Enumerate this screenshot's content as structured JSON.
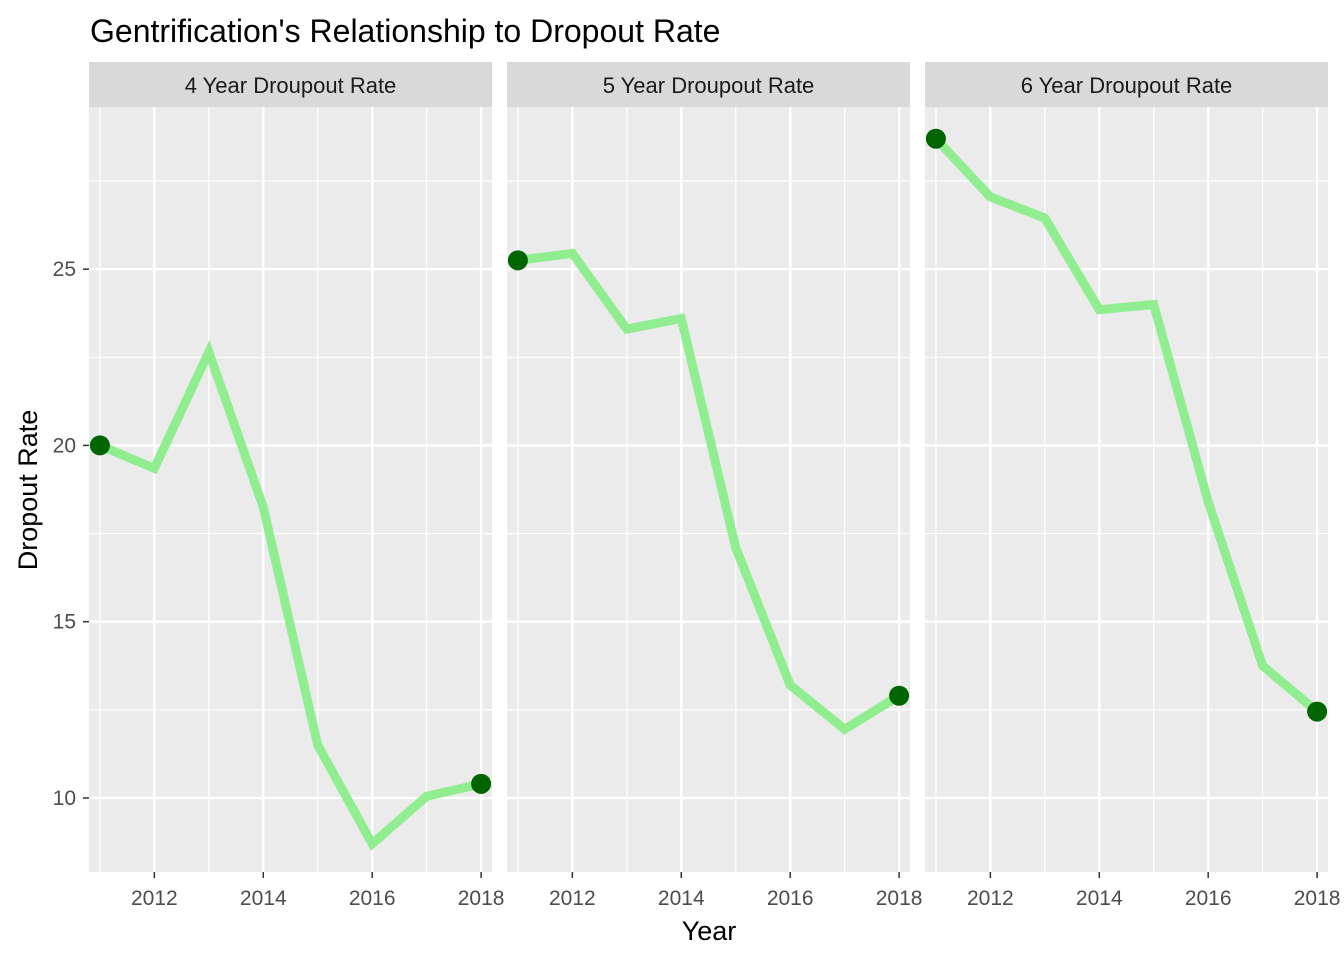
{
  "chart_data": {
    "type": "line",
    "title": "Gentrification's Relationship to Dropout Rate",
    "xlabel": "Year",
    "ylabel": "Dropout Rate",
    "x": [
      2011,
      2012,
      2013,
      2014,
      2015,
      2016,
      2017,
      2018
    ],
    "xlim": [
      2010.8,
      2018.2
    ],
    "ylim": [
      7.9,
      29.6
    ],
    "x_ticks": [
      2012,
      2014,
      2016,
      2018
    ],
    "y_ticks": [
      10,
      15,
      20,
      25
    ],
    "grid": true,
    "line_color": "#90EE90",
    "point_color": "#006400",
    "panel_background": "#EBEBEB",
    "strip_background": "#D9D9D9",
    "panels": [
      {
        "label": "4 Year Droupout Rate",
        "values": [
          20.0,
          19.35,
          22.65,
          18.25,
          11.5,
          8.7,
          10.05,
          10.4
        ]
      },
      {
        "label": "5 Year Droupout Rate",
        "values": [
          25.25,
          25.45,
          23.3,
          23.6,
          17.1,
          13.2,
          11.95,
          12.9
        ]
      },
      {
        "label": "6 Year Droupout Rate",
        "values": [
          28.7,
          27.05,
          26.45,
          23.85,
          24.0,
          18.4,
          13.75,
          12.45
        ]
      }
    ]
  }
}
